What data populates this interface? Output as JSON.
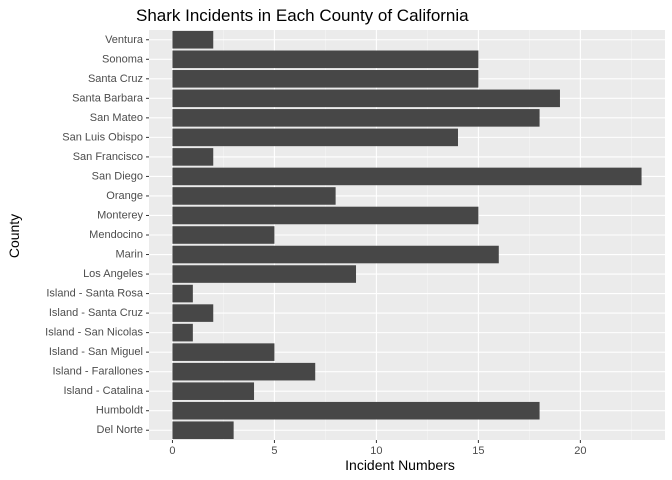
{
  "chart_data": {
    "type": "bar",
    "orientation": "horizontal",
    "title": "Shark Incidents in Each County of California",
    "xlabel": "Incident Numbers",
    "ylabel": "County",
    "categories": [
      "Ventura",
      "Sonoma",
      "Santa Cruz",
      "Santa Barbara",
      "San Mateo",
      "San Luis Obispo",
      "San Francisco",
      "San Diego",
      "Orange",
      "Monterey",
      "Mendocino",
      "Marin",
      "Los Angeles",
      "Island - Santa Rosa",
      "Island - Santa Cruz",
      "Island - San Nicolas",
      "Island - San Miguel",
      "Island - Farallones",
      "Island - Catalina",
      "Humboldt",
      "Del Norte"
    ],
    "values": [
      2,
      15,
      15,
      19,
      18,
      14,
      2,
      23,
      8,
      15,
      5,
      16,
      9,
      1,
      2,
      1,
      5,
      7,
      4,
      18,
      3
    ],
    "xlim": [
      -1.15,
      24.15
    ],
    "xticks": [
      0,
      5,
      10,
      15,
      20
    ],
    "grid": true,
    "colors": {
      "bar": "#474747",
      "panel": "#ebebeb",
      "grid_major": "#ffffff",
      "grid_minor": "#f5f5f5"
    }
  }
}
